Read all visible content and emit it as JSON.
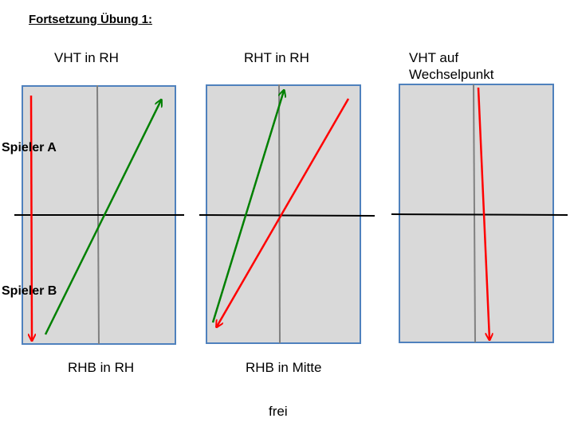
{
  "title": "Fortsetzung Übung 1:",
  "player_a": "Spieler A",
  "player_b": "Spieler B",
  "colors": {
    "court_fill": "#d9d9d9",
    "court_border": "#4f81bd",
    "net": "#000000",
    "center_line": "#808080",
    "red_arrow": "#ff0000",
    "green_arrow": "#008000"
  },
  "courts": [
    {
      "top_label": "VHT in RH",
      "bottom_label": "RHB in RH"
    },
    {
      "top_label": "RHT in RH",
      "bottom_label": "RHB in Mitte"
    },
    {
      "top_label_line1": "VHT auf",
      "top_label_line2": "Wechselpunkt"
    }
  ],
  "footer": "frei"
}
